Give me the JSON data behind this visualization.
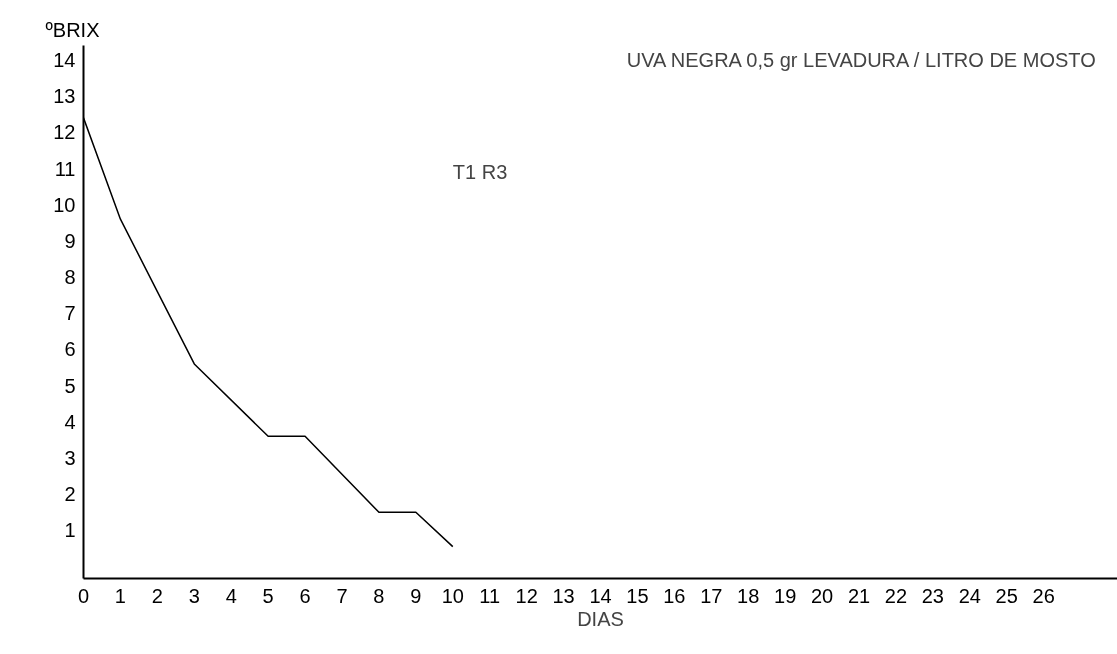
{
  "chart_data": {
    "type": "line",
    "title": "UVA NEGRA 0,5 gr LEVADURA / LITRO DE MOSTO",
    "xlabel": "DIAS",
    "ylabel": "ºBRIX",
    "annotations": [
      "T1 R3"
    ],
    "x": [
      0,
      1,
      2,
      3,
      5,
      6,
      8,
      9,
      10
    ],
    "series": [
      {
        "color": "#000000",
        "values": [
          12.4,
          9.6,
          7.6,
          5.6,
          3.6,
          3.6,
          1.5,
          1.5,
          0.55
        ]
      }
    ],
    "xlim": [
      0,
      28
    ],
    "ylim": [
      -0.33,
      14.4
    ],
    "xticks": [
      0,
      1,
      2,
      3,
      4,
      5,
      6,
      7,
      8,
      9,
      10,
      11,
      12,
      13,
      14,
      15,
      16,
      17,
      18,
      19,
      20,
      21,
      22,
      23,
      24,
      25,
      26
    ],
    "yticks": [
      1,
      2,
      3,
      4,
      5,
      6,
      7,
      8,
      9,
      10,
      11,
      12,
      13,
      14
    ],
    "grid": false,
    "marker": "none",
    "line_style": "solid"
  }
}
